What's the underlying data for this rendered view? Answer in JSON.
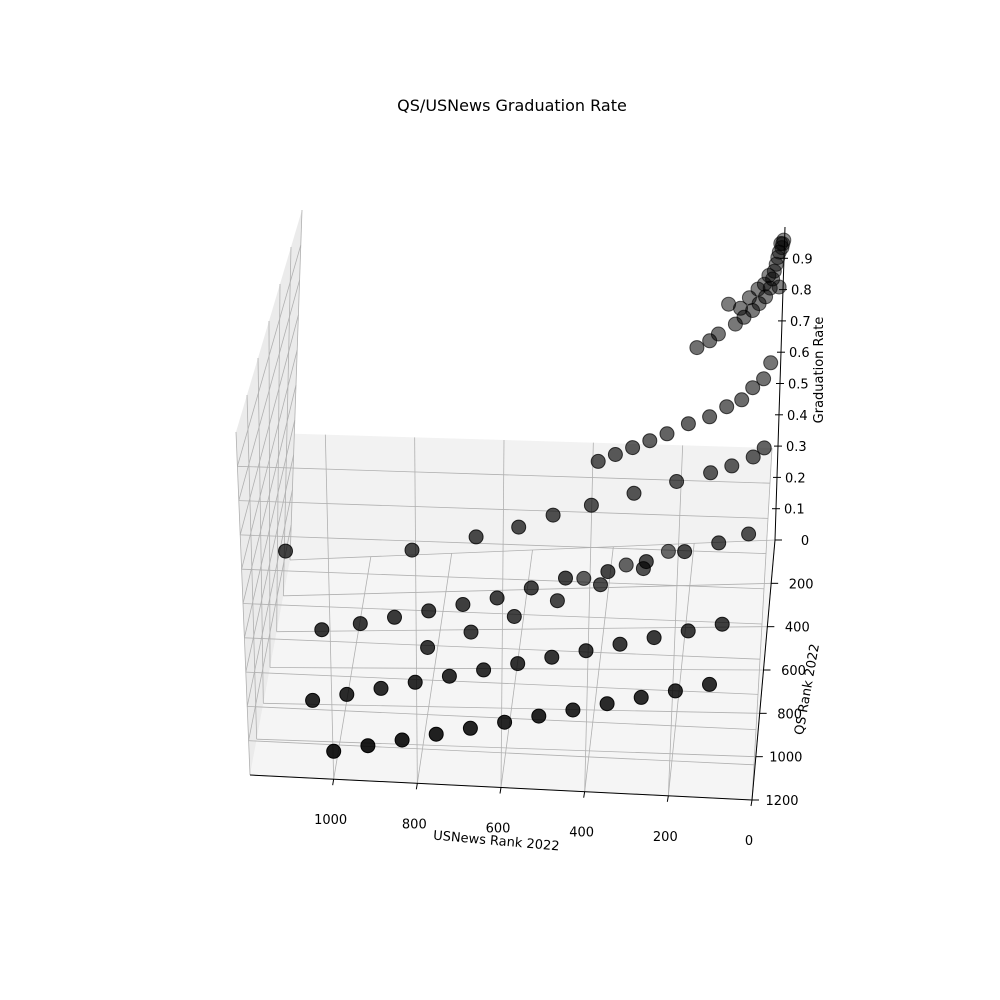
{
  "chart_data": {
    "type": "scatter",
    "projection": "3d",
    "title": "QS/USNews Graduation Rate",
    "xlabel": "USNews Rank 2022",
    "ylabel": "QS Rank 2022",
    "zlabel": "Graduation Rate",
    "xlim": [
      0,
      1200
    ],
    "ylim": [
      0,
      1200
    ],
    "zlim": [
      0,
      1
    ],
    "xticks": [
      "1000",
      "800",
      "600",
      "400",
      "200",
      "0"
    ],
    "yticks": [
      "0",
      "200",
      "400",
      "600",
      "800",
      "1000",
      "1200"
    ],
    "zticks": [
      "0.1",
      "0.2",
      "0.3",
      "0.4",
      "0.5",
      "0.6",
      "0.7",
      "0.8",
      "0.9"
    ],
    "grid": true,
    "marker_color": "#000000",
    "pane_color": "#f2f2f2",
    "series": [
      {
        "points": [
          {
            "x": 2,
            "y": 3,
            "z": 0.96
          },
          {
            "x": 4,
            "y": 6,
            "z": 0.95
          },
          {
            "x": 6,
            "y": 10,
            "z": 0.94
          },
          {
            "x": 9,
            "y": 5,
            "z": 0.95
          },
          {
            "x": 12,
            "y": 18,
            "z": 0.93
          },
          {
            "x": 15,
            "y": 30,
            "z": 0.92
          },
          {
            "x": 18,
            "y": 50,
            "z": 0.91
          },
          {
            "x": 22,
            "y": 70,
            "z": 0.9
          },
          {
            "x": 25,
            "y": 95,
            "z": 0.89
          },
          {
            "x": 8,
            "y": 120,
            "z": 0.88
          },
          {
            "x": 30,
            "y": 110,
            "z": 0.87
          },
          {
            "x": 35,
            "y": 60,
            "z": 0.88
          },
          {
            "x": 40,
            "y": 140,
            "z": 0.86
          },
          {
            "x": 45,
            "y": 90,
            "z": 0.87
          },
          {
            "x": 55,
            "y": 160,
            "z": 0.85
          },
          {
            "x": 60,
            "y": 100,
            "z": 0.86
          },
          {
            "x": 70,
            "y": 180,
            "z": 0.84
          },
          {
            "x": 80,
            "y": 130,
            "z": 0.85
          },
          {
            "x": 90,
            "y": 200,
            "z": 0.83
          },
          {
            "x": 100,
            "y": 170,
            "z": 0.84
          },
          {
            "x": 110,
            "y": 220,
            "z": 0.82
          },
          {
            "x": 130,
            "y": 150,
            "z": 0.84
          },
          {
            "x": 150,
            "y": 240,
            "z": 0.8
          },
          {
            "x": 170,
            "y": 260,
            "z": 0.79
          },
          {
            "x": 200,
            "y": 280,
            "z": 0.78
          },
          {
            "x": 20,
            "y": 250,
            "z": 0.72
          },
          {
            "x": 35,
            "y": 300,
            "z": 0.7
          },
          {
            "x": 60,
            "y": 330,
            "z": 0.69
          },
          {
            "x": 85,
            "y": 360,
            "z": 0.67
          },
          {
            "x": 120,
            "y": 380,
            "z": 0.66
          },
          {
            "x": 160,
            "y": 400,
            "z": 0.64
          },
          {
            "x": 210,
            "y": 420,
            "z": 0.63
          },
          {
            "x": 260,
            "y": 440,
            "z": 0.61
          },
          {
            "x": 300,
            "y": 460,
            "z": 0.6
          },
          {
            "x": 340,
            "y": 480,
            "z": 0.59
          },
          {
            "x": 380,
            "y": 500,
            "z": 0.58
          },
          {
            "x": 420,
            "y": 520,
            "z": 0.57
          },
          {
            "x": 25,
            "y": 420,
            "z": 0.56
          },
          {
            "x": 50,
            "y": 450,
            "z": 0.55
          },
          {
            "x": 100,
            "y": 480,
            "z": 0.54
          },
          {
            "x": 150,
            "y": 500,
            "z": 0.53
          },
          {
            "x": 230,
            "y": 530,
            "z": 0.52
          },
          {
            "x": 330,
            "y": 560,
            "z": 0.5
          },
          {
            "x": 430,
            "y": 590,
            "z": 0.48
          },
          {
            "x": 520,
            "y": 610,
            "z": 0.46
          },
          {
            "x": 600,
            "y": 640,
            "z": 0.44
          },
          {
            "x": 700,
            "y": 660,
            "z": 0.42
          },
          {
            "x": 850,
            "y": 700,
            "z": 0.4
          },
          {
            "x": 1150,
            "y": 720,
            "z": 0.4
          },
          {
            "x": 50,
            "y": 620,
            "z": 0.42
          },
          {
            "x": 120,
            "y": 650,
            "z": 0.41
          },
          {
            "x": 200,
            "y": 680,
            "z": 0.4
          },
          {
            "x": 290,
            "y": 700,
            "z": 0.38
          },
          {
            "x": 380,
            "y": 720,
            "z": 0.36
          },
          {
            "x": 480,
            "y": 740,
            "z": 0.35
          },
          {
            "x": 560,
            "y": 760,
            "z": 0.33
          },
          {
            "x": 640,
            "y": 780,
            "z": 0.31
          },
          {
            "x": 720,
            "y": 800,
            "z": 0.3
          },
          {
            "x": 800,
            "y": 820,
            "z": 0.29
          },
          {
            "x": 880,
            "y": 840,
            "z": 0.28
          },
          {
            "x": 960,
            "y": 860,
            "z": 0.27
          },
          {
            "x": 1050,
            "y": 880,
            "z": 0.26
          },
          {
            "x": 100,
            "y": 800,
            "z": 0.26
          },
          {
            "x": 180,
            "y": 820,
            "z": 0.25
          },
          {
            "x": 260,
            "y": 840,
            "z": 0.24
          },
          {
            "x": 340,
            "y": 860,
            "z": 0.23
          },
          {
            "x": 420,
            "y": 880,
            "z": 0.22
          },
          {
            "x": 500,
            "y": 900,
            "z": 0.21
          },
          {
            "x": 580,
            "y": 920,
            "z": 0.2
          },
          {
            "x": 660,
            "y": 940,
            "z": 0.19
          },
          {
            "x": 740,
            "y": 960,
            "z": 0.18
          },
          {
            "x": 820,
            "y": 980,
            "z": 0.17
          },
          {
            "x": 900,
            "y": 1000,
            "z": 0.16
          },
          {
            "x": 980,
            "y": 1020,
            "z": 0.15
          },
          {
            "x": 1060,
            "y": 1040,
            "z": 0.14
          },
          {
            "x": 120,
            "y": 960,
            "z": 0.18
          },
          {
            "x": 200,
            "y": 980,
            "z": 0.17
          },
          {
            "x": 280,
            "y": 1000,
            "z": 0.16
          },
          {
            "x": 360,
            "y": 1020,
            "z": 0.15
          },
          {
            "x": 440,
            "y": 1040,
            "z": 0.14
          },
          {
            "x": 520,
            "y": 1060,
            "z": 0.13
          },
          {
            "x": 600,
            "y": 1080,
            "z": 0.12
          },
          {
            "x": 680,
            "y": 1100,
            "z": 0.11
          },
          {
            "x": 760,
            "y": 1120,
            "z": 0.1
          },
          {
            "x": 840,
            "y": 1140,
            "z": 0.09
          },
          {
            "x": 920,
            "y": 1160,
            "z": 0.08
          },
          {
            "x": 1000,
            "y": 1180,
            "z": 0.07
          },
          {
            "x": 300,
            "y": 600,
            "z": 0.3
          },
          {
            "x": 400,
            "y": 650,
            "z": 0.28
          },
          {
            "x": 500,
            "y": 700,
            "z": 0.26
          },
          {
            "x": 600,
            "y": 750,
            "z": 0.24
          },
          {
            "x": 700,
            "y": 800,
            "z": 0.22
          },
          {
            "x": 800,
            "y": 850,
            "z": 0.2
          },
          {
            "x": 250,
            "y": 350,
            "z": 0.2
          },
          {
            "x": 350,
            "y": 400,
            "z": 0.19
          },
          {
            "x": 450,
            "y": 450,
            "z": 0.18
          }
        ]
      }
    ]
  }
}
